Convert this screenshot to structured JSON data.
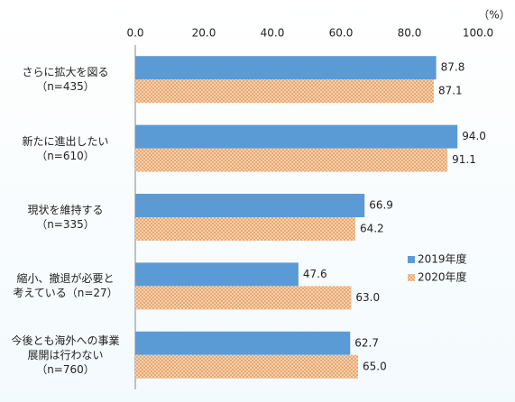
{
  "chart_data": {
    "type": "hbar",
    "unit_label": "（%）",
    "categories": [
      "さらに拡大を図る\n（n=435）",
      "新たに進出したい\n（n=610）",
      "現状を維持する\n（n=335）",
      "縮小、撤退が必要と\n考えている（n=27）",
      "今後とも海外への事業\n展開は行わない\n（n=760）"
    ],
    "series": [
      {
        "name": "2019年度",
        "color": "#5b9bd5",
        "values": [
          87.8,
          94.0,
          66.9,
          47.6,
          62.7
        ],
        "value_labels": [
          "87.8",
          "94.0",
          "66.9",
          "47.6",
          "62.7"
        ]
      },
      {
        "name": "2020年度",
        "color": "#e8a56a",
        "values": [
          87.1,
          91.1,
          64.2,
          63.0,
          65.0
        ],
        "value_labels": [
          "87.1",
          "91.1",
          "64.2",
          "63.0",
          "65.0"
        ]
      }
    ],
    "xlim": [
      0,
      100
    ],
    "xticks": [
      {
        "value": 0,
        "label": "0.0"
      },
      {
        "value": 20,
        "label": "20.0"
      },
      {
        "value": 40,
        "label": "40.0"
      },
      {
        "value": 60,
        "label": "60.0"
      },
      {
        "value": 80,
        "label": "80.0"
      },
      {
        "value": 100,
        "label": "100.0"
      }
    ],
    "grid": false,
    "legend": "right"
  }
}
